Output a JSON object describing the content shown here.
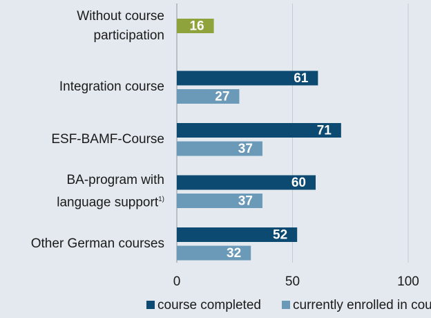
{
  "chart_data": {
    "type": "hbar",
    "categories": [
      "Without course participation",
      "Integration course",
      "ESF-BAMF-Course",
      "BA-program with language support",
      "Other German courses"
    ],
    "footnote_marks": [
      null,
      null,
      null,
      "1)",
      null
    ],
    "series": [
      {
        "name": "course completed",
        "color": "#0d4a72",
        "values": [
          null,
          61,
          71,
          60,
          52
        ]
      },
      {
        "name": "currently enrolled in course",
        "color": "#6b99b8",
        "values": [
          null,
          27,
          37,
          37,
          32
        ]
      },
      {
        "color": "#8ea33b",
        "values": [
          16,
          null,
          null,
          null,
          null
        ]
      }
    ],
    "xlim": [
      0,
      100
    ],
    "xticks": [
      0,
      50,
      100
    ],
    "grid": true
  }
}
